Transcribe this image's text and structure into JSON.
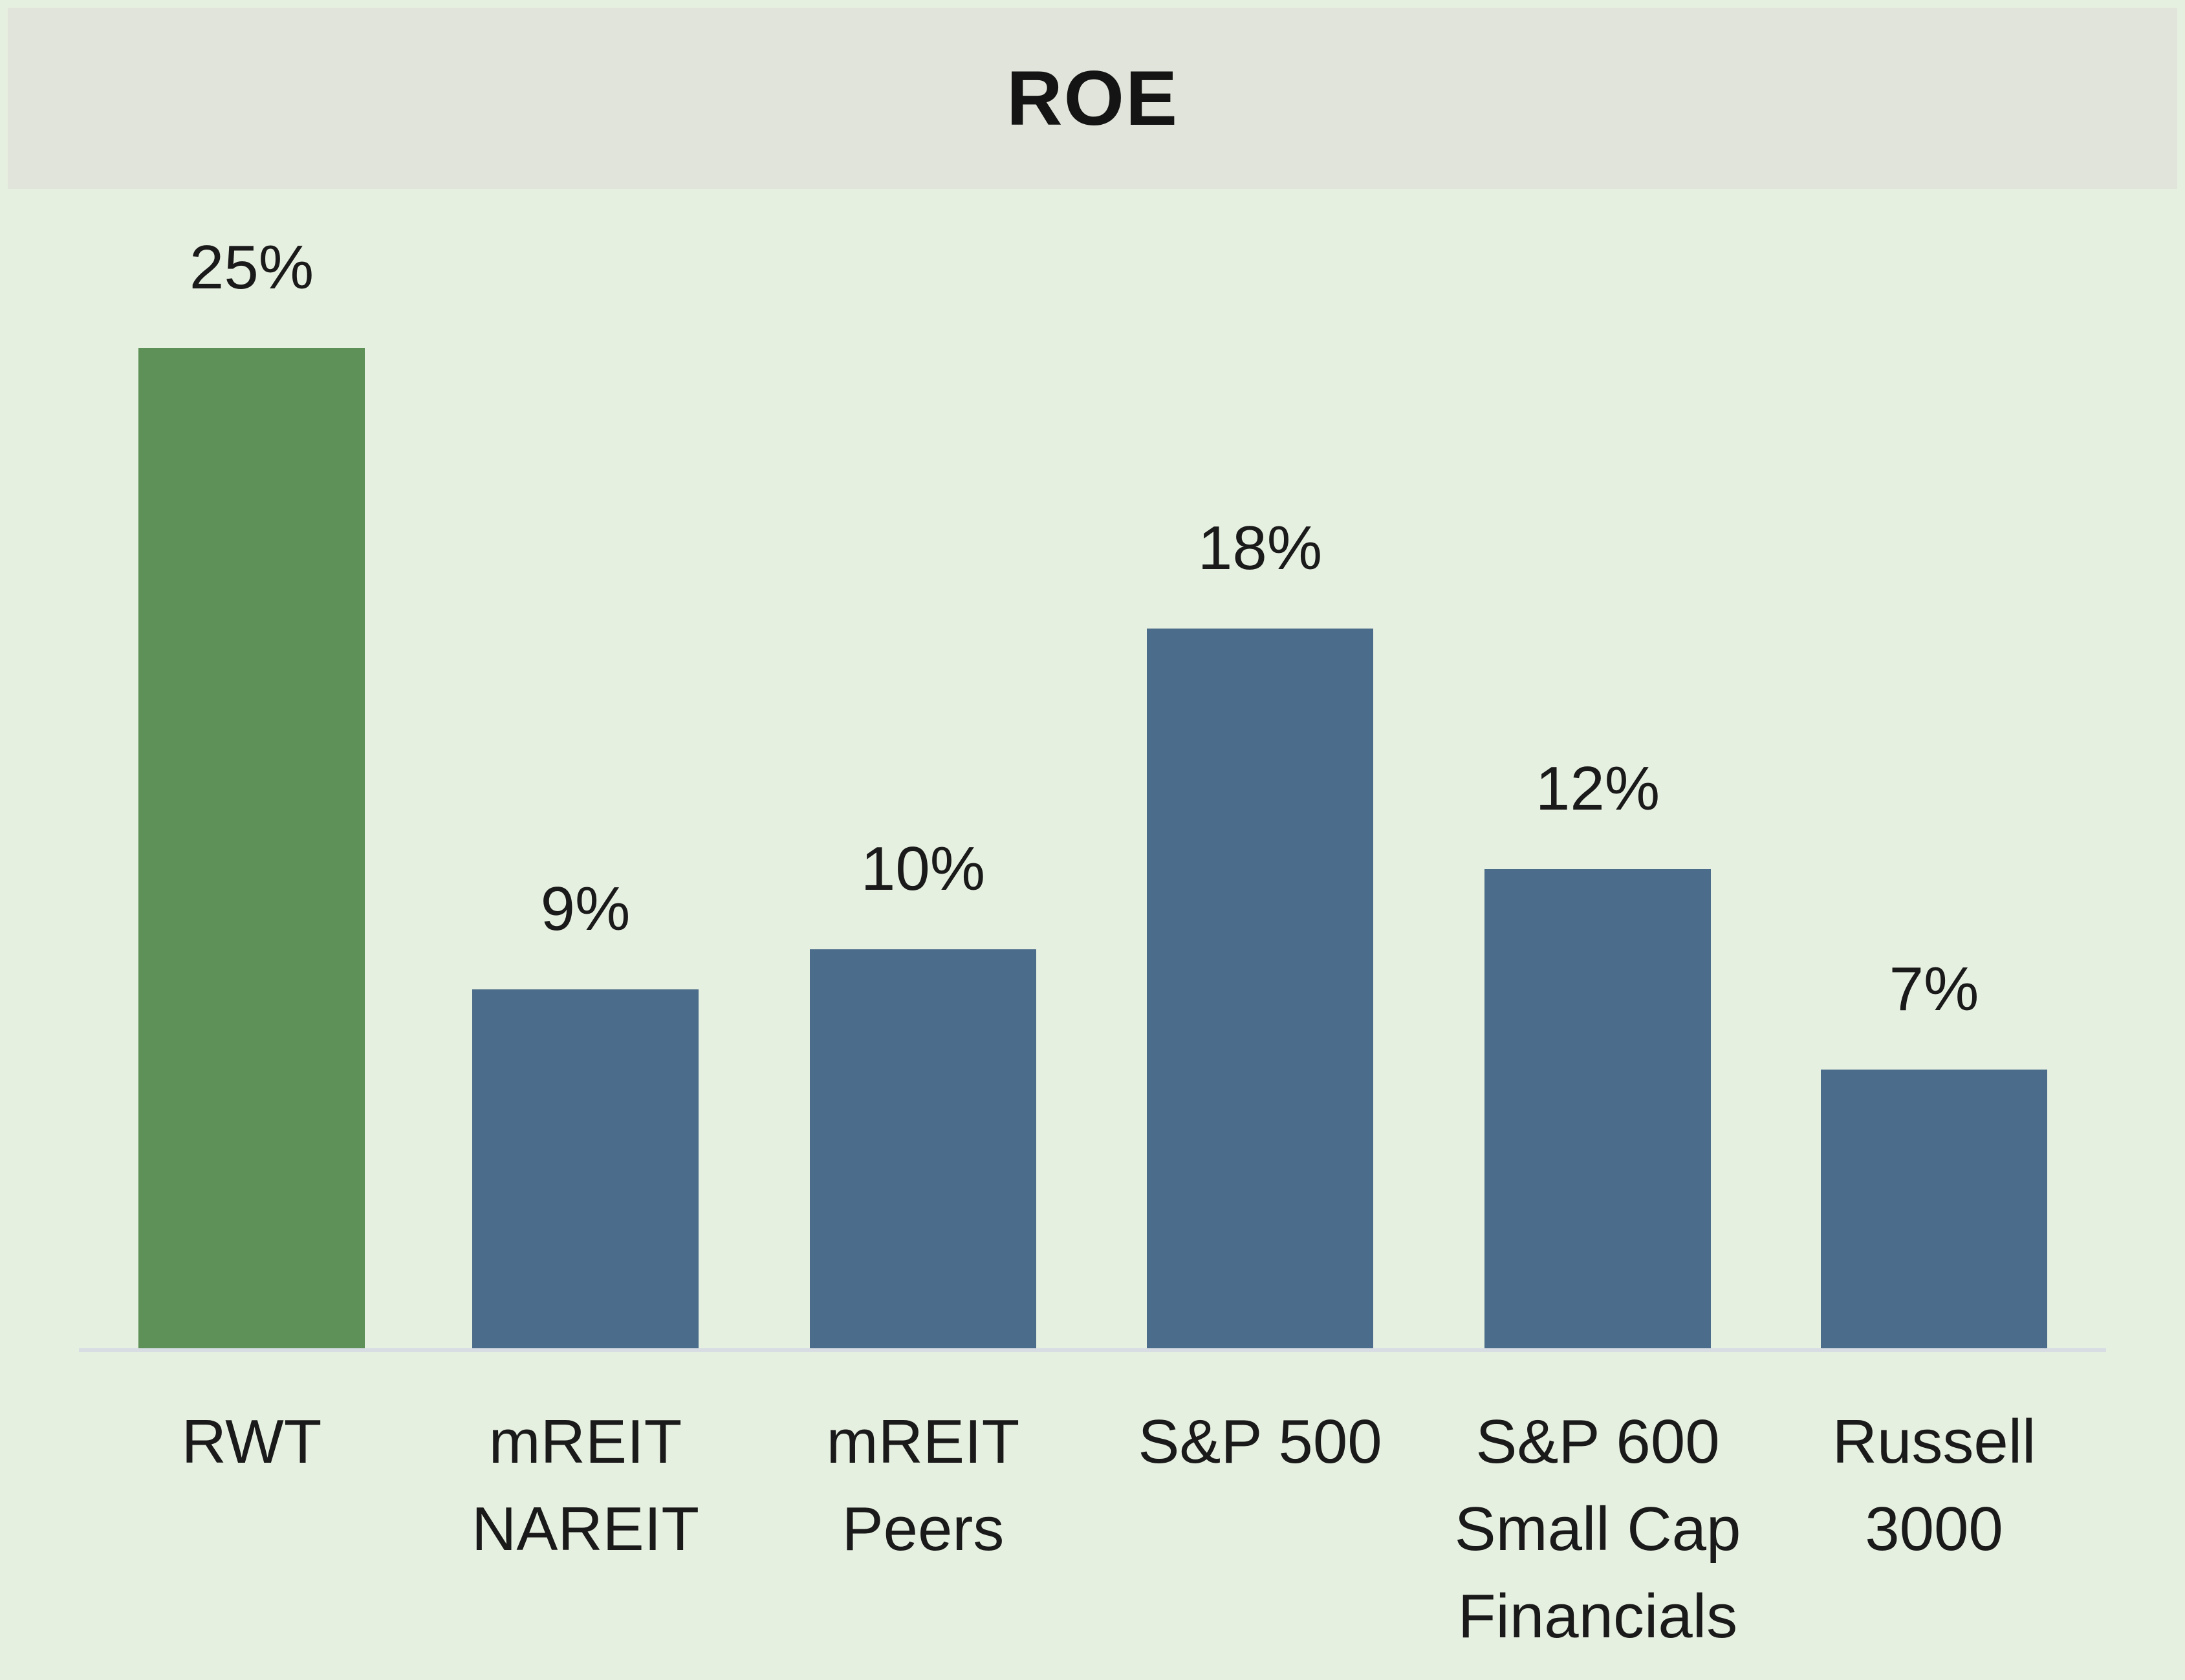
{
  "chart_data": {
    "type": "bar",
    "title": "ROE",
    "categories": [
      "RWT",
      "mREIT NAREIT",
      "mREIT Peers",
      "S&P 500",
      "S&P 600 Small Cap Financials",
      "Russell 3000"
    ],
    "category_lines": [
      [
        "RWT"
      ],
      [
        "mREIT",
        "NAREIT"
      ],
      [
        "mREIT",
        "Peers"
      ],
      [
        "S&P 500"
      ],
      [
        "S&P 600",
        "Small Cap",
        "Financials"
      ],
      [
        "Russell",
        "3000"
      ]
    ],
    "values": [
      25,
      9,
      10,
      18,
      12,
      7
    ],
    "data_labels": [
      "25%",
      "9%",
      "10%",
      "18%",
      "12%",
      "7%"
    ],
    "unit": "%",
    "ylim": [
      0,
      25
    ],
    "grid": false,
    "legend": "none",
    "colors": {
      "highlight": "#5d9157",
      "default": "#4b6c8b",
      "baseline": "#d7dde3",
      "background": "#e6f0e0",
      "title_band": "#e1e4da"
    },
    "highlight_index": 0
  }
}
